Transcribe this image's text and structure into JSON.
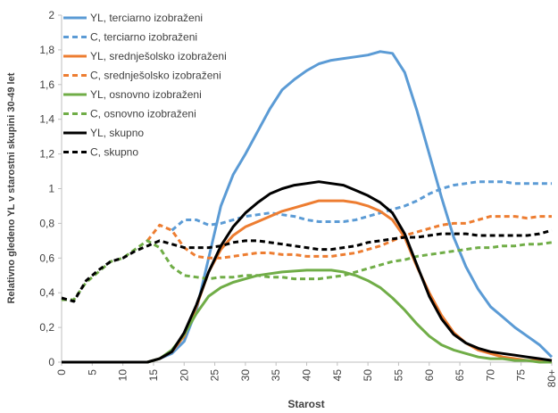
{
  "chart_data": {
    "type": "line",
    "x_label": "Starost",
    "y_label": "Relativno gledeno YL v starostni skupini 30-49 let",
    "x": [
      0,
      2,
      4,
      6,
      8,
      10,
      12,
      14,
      16,
      18,
      20,
      22,
      24,
      26,
      28,
      30,
      32,
      34,
      36,
      38,
      40,
      42,
      44,
      46,
      48,
      50,
      52,
      54,
      56,
      58,
      60,
      62,
      64,
      66,
      68,
      70,
      72,
      74,
      76,
      78,
      80
    ],
    "xlim": [
      0,
      80
    ],
    "xticks": [
      0,
      5,
      10,
      15,
      20,
      25,
      30,
      35,
      40,
      45,
      50,
      55,
      60,
      65,
      70,
      75,
      {
        "value": 80,
        "label": "80+"
      }
    ],
    "ylim": [
      0,
      2
    ],
    "yticks": [
      0,
      {
        "value": 0.2,
        "label": "0,2"
      },
      {
        "value": 0.4,
        "label": "0,4"
      },
      {
        "value": 0.6,
        "label": "0,6"
      },
      {
        "value": 0.8,
        "label": "0,8"
      },
      1,
      {
        "value": 1.2,
        "label": "1,2"
      },
      {
        "value": 1.4,
        "label": "1,4"
      },
      {
        "value": 1.6,
        "label": "1,6"
      },
      {
        "value": 1.8,
        "label": "1,8"
      },
      2
    ],
    "legend": "upper left",
    "series": [
      {
        "name": "YL, terciarno izobraženi",
        "color": "#5b9bd5",
        "dash": false,
        "values": [
          0,
          0,
          0,
          0,
          0,
          0,
          0,
          0,
          0.02,
          0.05,
          0.12,
          0.3,
          0.6,
          0.9,
          1.08,
          1.2,
          1.33,
          1.46,
          1.57,
          1.63,
          1.68,
          1.72,
          1.74,
          1.75,
          1.76,
          1.77,
          1.79,
          1.78,
          1.67,
          1.45,
          1.2,
          0.95,
          0.72,
          0.55,
          0.42,
          0.32,
          0.26,
          0.2,
          0.15,
          0.1,
          0.03
        ]
      },
      {
        "name": "C, terciarno izobraženi",
        "color": "#5b9bd5",
        "dash": true,
        "values": [
          null,
          null,
          null,
          null,
          null,
          null,
          null,
          null,
          null,
          0.76,
          0.82,
          0.82,
          0.79,
          0.8,
          0.82,
          0.84,
          0.85,
          0.86,
          0.85,
          0.84,
          0.82,
          0.81,
          0.81,
          0.81,
          0.82,
          0.84,
          0.86,
          0.88,
          0.9,
          0.93,
          0.97,
          1.0,
          1.02,
          1.03,
          1.04,
          1.04,
          1.04,
          1.03,
          1.03,
          1.03,
          1.03
        ]
      },
      {
        "name": "YL, srednješolsko izobraženi",
        "color": "#ed7d31",
        "dash": false,
        "values": [
          0,
          0,
          0,
          0,
          0,
          0,
          0,
          0,
          0.02,
          0.06,
          0.15,
          0.32,
          0.52,
          0.65,
          0.73,
          0.78,
          0.81,
          0.84,
          0.87,
          0.89,
          0.91,
          0.93,
          0.93,
          0.93,
          0.92,
          0.9,
          0.87,
          0.82,
          0.72,
          0.55,
          0.4,
          0.27,
          0.17,
          0.11,
          0.07,
          0.05,
          0.03,
          0.02,
          0.01,
          0.01,
          0
        ]
      },
      {
        "name": "C, srednješolsko izobraženi",
        "color": "#ed7d31",
        "dash": true,
        "values": [
          null,
          null,
          null,
          null,
          null,
          null,
          null,
          0.7,
          0.79,
          0.76,
          0.66,
          0.61,
          0.6,
          0.6,
          0.61,
          0.62,
          0.63,
          0.63,
          0.62,
          0.62,
          0.61,
          0.61,
          0.61,
          0.62,
          0.63,
          0.65,
          0.67,
          0.7,
          0.73,
          0.75,
          0.77,
          0.79,
          0.8,
          0.8,
          0.82,
          0.84,
          0.84,
          0.84,
          0.83,
          0.84,
          0.84
        ]
      },
      {
        "name": "YL, osnovno izobraženi",
        "color": "#70ad47",
        "dash": false,
        "values": [
          0,
          0,
          0,
          0,
          0,
          0,
          0,
          0,
          0.02,
          0.07,
          0.16,
          0.28,
          0.38,
          0.43,
          0.46,
          0.48,
          0.5,
          0.51,
          0.52,
          0.525,
          0.53,
          0.53,
          0.53,
          0.52,
          0.5,
          0.47,
          0.43,
          0.37,
          0.3,
          0.22,
          0.15,
          0.1,
          0.07,
          0.05,
          0.03,
          0.02,
          0.02,
          0.01,
          0.01,
          0,
          0
        ]
      },
      {
        "name": "C, osnovno izobraženi",
        "color": "#70ad47",
        "dash": true,
        "values": [
          0.36,
          0.36,
          0.46,
          0.52,
          0.58,
          0.6,
          0.65,
          0.7,
          0.66,
          0.55,
          0.5,
          0.49,
          0.48,
          0.49,
          0.49,
          0.5,
          0.5,
          0.49,
          0.49,
          0.48,
          0.48,
          0.48,
          0.49,
          0.5,
          0.52,
          0.54,
          0.56,
          0.58,
          0.59,
          0.61,
          0.62,
          0.63,
          0.64,
          0.65,
          0.66,
          0.66,
          0.67,
          0.67,
          0.68,
          0.68,
          0.69
        ]
      },
      {
        "name": "YL, skupno",
        "color": "#000000",
        "dash": false,
        "values": [
          0,
          0,
          0,
          0,
          0,
          0,
          0,
          0,
          0.02,
          0.06,
          0.17,
          0.33,
          0.52,
          0.67,
          0.78,
          0.86,
          0.92,
          0.97,
          1.0,
          1.02,
          1.03,
          1.04,
          1.03,
          1.02,
          0.99,
          0.96,
          0.92,
          0.86,
          0.74,
          0.56,
          0.38,
          0.25,
          0.16,
          0.11,
          0.08,
          0.06,
          0.05,
          0.04,
          0.03,
          0.02,
          0.01
        ]
      },
      {
        "name": "C, skupno",
        "color": "#000000",
        "dash": true,
        "values": [
          0.37,
          0.35,
          0.47,
          0.53,
          0.58,
          0.6,
          0.64,
          0.67,
          0.7,
          0.68,
          0.66,
          0.66,
          0.66,
          0.67,
          0.69,
          0.7,
          0.7,
          0.69,
          0.68,
          0.67,
          0.66,
          0.65,
          0.65,
          0.66,
          0.67,
          0.69,
          0.7,
          0.71,
          0.72,
          0.72,
          0.73,
          0.74,
          0.74,
          0.74,
          0.73,
          0.73,
          0.73,
          0.73,
          0.73,
          0.74,
          0.76
        ]
      }
    ]
  }
}
